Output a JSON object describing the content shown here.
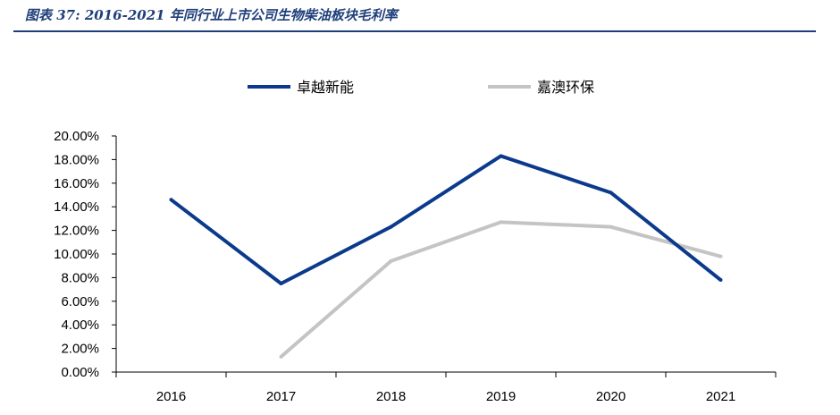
{
  "figure": {
    "title": "图表 37:  2016-2021 年同行业上市公司生物柴油板块毛利率"
  },
  "colors": {
    "title": "#1f3f7a",
    "series_1": "#0b3a8c",
    "series_2": "#c4c4c4",
    "axis": "#000000"
  },
  "chart_data": {
    "type": "line",
    "categories": [
      "2016",
      "2017",
      "2018",
      "2019",
      "2020",
      "2021"
    ],
    "series": [
      {
        "name": "卓越新能",
        "values": [
          0.146,
          0.075,
          0.123,
          0.183,
          0.152,
          0.078
        ]
      },
      {
        "name": "嘉澳环保",
        "values": [
          null,
          0.013,
          0.094,
          0.127,
          0.123,
          0.098
        ]
      }
    ],
    "ylim": [
      0,
      0.2
    ],
    "yticks": [
      "0.00%",
      "2.00%",
      "4.00%",
      "6.00%",
      "8.00%",
      "10.00%",
      "12.00%",
      "14.00%",
      "16.00%",
      "18.00%",
      "20.00%"
    ],
    "grid": false,
    "legend": "top"
  }
}
